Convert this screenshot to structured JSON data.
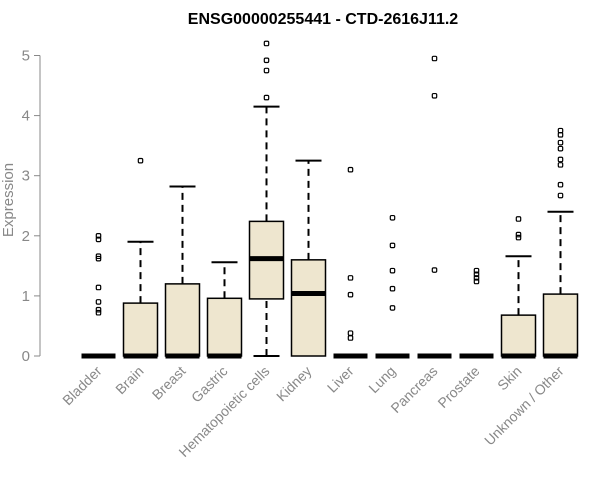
{
  "chart_data": {
    "type": "box",
    "title": "ENSG00000255441 - CTD-2616J11.2",
    "xlabel": "",
    "ylabel": "Expression",
    "ylim": [
      0,
      5
    ],
    "yticks": [
      0,
      1,
      2,
      3,
      4,
      5
    ],
    "grid": false,
    "box_fill": "#EEE6CF",
    "categories": [
      "Bladder",
      "Brain",
      "Breast",
      "Gastric",
      "Hematopoietic cells",
      "Kidney",
      "Liver",
      "Lung",
      "Pancreas",
      "Prostate",
      "Skin",
      "Unknown / Other"
    ],
    "boxes": [
      {
        "q1": 0,
        "median": 0,
        "q3": 0,
        "whisker_low": 0,
        "whisker_high": 0,
        "outliers": [
          0.72,
          0.77,
          0.9,
          1.14,
          1.62,
          1.66,
          1.94,
          2.0
        ]
      },
      {
        "q1": 0,
        "median": 0,
        "q3": 0.88,
        "whisker_low": 0,
        "whisker_high": 1.9,
        "outliers": [
          3.25
        ]
      },
      {
        "q1": 0,
        "median": 0,
        "q3": 1.2,
        "whisker_low": 0,
        "whisker_high": 2.82,
        "outliers": []
      },
      {
        "q1": 0,
        "median": 0,
        "q3": 0.96,
        "whisker_low": 0,
        "whisker_high": 1.56,
        "outliers": []
      },
      {
        "q1": 0.95,
        "median": 1.62,
        "q3": 2.24,
        "whisker_low": 0,
        "whisker_high": 4.15,
        "outliers": [
          4.3,
          4.75,
          4.92,
          5.2
        ]
      },
      {
        "q1": 0,
        "median": 1.04,
        "q3": 1.6,
        "whisker_low": 0,
        "whisker_high": 3.25,
        "outliers": []
      },
      {
        "q1": 0,
        "median": 0,
        "q3": 0,
        "whisker_low": 0,
        "whisker_high": 0,
        "outliers": [
          0.3,
          0.38,
          1.02,
          1.3,
          3.1
        ]
      },
      {
        "q1": 0,
        "median": 0,
        "q3": 0,
        "whisker_low": 0,
        "whisker_high": 0,
        "outliers": [
          0.8,
          1.12,
          1.42,
          1.84,
          2.3
        ]
      },
      {
        "q1": 0,
        "median": 0,
        "q3": 0,
        "whisker_low": 0,
        "whisker_high": 0,
        "outliers": [
          1.43,
          4.33,
          4.95
        ]
      },
      {
        "q1": 0,
        "median": 0,
        "q3": 0,
        "whisker_low": 0,
        "whisker_high": 0,
        "outliers": [
          1.24,
          1.3,
          1.36,
          1.42
        ]
      },
      {
        "q1": 0,
        "median": 0,
        "q3": 0.68,
        "whisker_low": 0,
        "whisker_high": 1.66,
        "outliers": [
          1.97,
          2.02,
          2.28
        ]
      },
      {
        "q1": 0,
        "median": 0,
        "q3": 1.03,
        "whisker_low": 0,
        "whisker_high": 2.4,
        "outliers": [
          2.67,
          2.85,
          3.18,
          3.27,
          3.45,
          3.55,
          3.68,
          3.75
        ]
      }
    ]
  }
}
